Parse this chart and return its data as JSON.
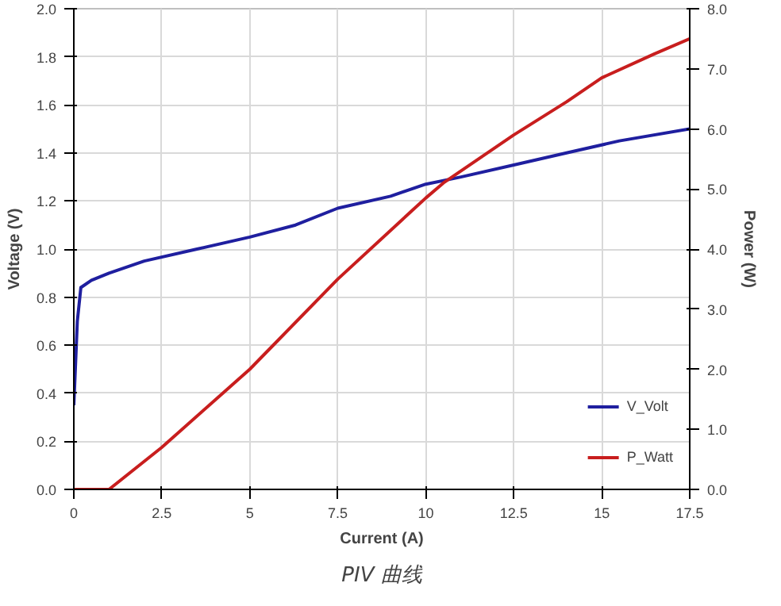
{
  "chart_data": {
    "type": "line",
    "title": "PIV 曲线",
    "xlabel": "Current (A)",
    "ylabel": "Voltage (V)",
    "y2label": "Power (W)",
    "xlim": [
      0,
      17.5
    ],
    "xticks": [
      0,
      2.5,
      5,
      7.5,
      10,
      12.5,
      15,
      17.5
    ],
    "ylim": [
      0,
      2.0
    ],
    "yticks": [
      {
        "value": 0,
        "label": "0.0"
      },
      0.2,
      0.4,
      0.6,
      0.8,
      {
        "value": 1,
        "label": "1.0"
      },
      1.2,
      1.4,
      1.6,
      1.8,
      {
        "value": 2,
        "label": "2.0"
      }
    ],
    "y2lim": [
      0,
      8
    ],
    "y2ticks": [
      {
        "value": 0,
        "label": "0.0"
      },
      {
        "value": 1,
        "label": "1.0"
      },
      {
        "value": 2,
        "label": "2.0"
      },
      {
        "value": 3,
        "label": "3.0"
      },
      {
        "value": 4,
        "label": "4.0"
      },
      {
        "value": 5,
        "label": "5.0"
      },
      {
        "value": 6,
        "label": "6.0"
      },
      {
        "value": 7,
        "label": "7.0"
      },
      {
        "value": 8,
        "label": "8.0"
      }
    ],
    "grid": true,
    "legend": "bottom right",
    "series": [
      {
        "name": "V_Volt",
        "color": "#1f1f9f",
        "x": [
          0,
          0.1,
          0.2,
          0.5,
          1,
          2,
          3.5,
          5,
          6.3,
          7.5,
          9,
          10,
          11,
          12.5,
          14,
          15.5,
          17.5
        ],
        "values": [
          0.35,
          0.7,
          0.84,
          0.87,
          0.9,
          0.95,
          1.0,
          1.05,
          1.1,
          1.17,
          1.22,
          1.27,
          1.3,
          1.35,
          1.4,
          1.45,
          1.5
        ]
      },
      {
        "name": "P_Watt",
        "color": "#c81e1e",
        "axis": "y2",
        "x": [
          0,
          1,
          2.5,
          5,
          7.5,
          10,
          10.5,
          12.5,
          14,
          15,
          16.5,
          17.5
        ],
        "values": [
          0,
          0,
          0.7,
          2.0,
          3.5,
          4.85,
          5.1,
          5.9,
          6.45,
          6.85,
          7.25,
          7.5
        ]
      }
    ]
  }
}
